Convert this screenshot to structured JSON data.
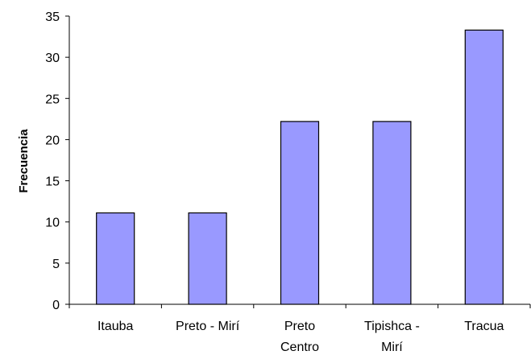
{
  "chart_data": {
    "type": "bar",
    "categories": [
      "Itauba",
      "Preto - Mirí",
      "Preto Centro",
      "Tipishca - Mirí",
      "Tracua"
    ],
    "category_lines": [
      [
        "Itauba"
      ],
      [
        "Preto - Mirí"
      ],
      [
        "Preto",
        "Centro"
      ],
      [
        "Tipishca -",
        "Mirí"
      ],
      [
        "Tracua"
      ]
    ],
    "values": [
      11.1,
      11.1,
      22.2,
      22.2,
      33.3
    ],
    "title": "",
    "xlabel": "",
    "ylabel": "Frecuencia",
    "ylim": [
      0,
      35
    ],
    "yticks": [
      "0",
      "5",
      "10",
      "15",
      "20",
      "25",
      "30",
      "35"
    ],
    "grid": false,
    "bar_color": "#9999ff",
    "bar_edge_color": "#000000"
  }
}
